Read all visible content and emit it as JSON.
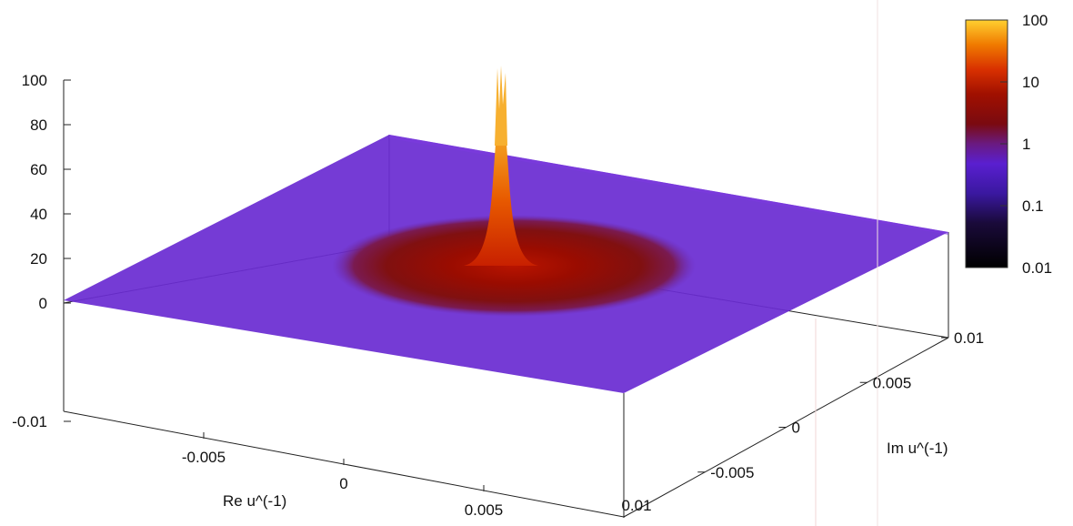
{
  "chart_data": {
    "type": "surface3d",
    "title": "",
    "xlabel": "Re u^(-1)",
    "ylabel": "Im u^(-1)",
    "zlabel": "",
    "x_range": [
      -0.01,
      0.01
    ],
    "y_range": [
      -0.01,
      0.01
    ],
    "z_range": [
      -0.01,
      100
    ],
    "x_ticks": [
      "-0.005",
      "0",
      "0.005",
      "0.01"
    ],
    "y_ticks": [
      "-0.005",
      "0",
      "0.005",
      "0.01"
    ],
    "z_ticks": [
      "100",
      "80",
      "60",
      "40",
      "20",
      "0",
      "-0.01"
    ],
    "y_corner_label": "0.01",
    "colorbar": {
      "scale": "log",
      "ticks": [
        "100",
        "10",
        "1",
        "0.1",
        "0.01"
      ],
      "range": [
        0.01,
        100
      ]
    },
    "peak": {
      "x": 0,
      "y": 0,
      "z_max": 100
    },
    "background_level": 0.1,
    "halo_radius": 0.005
  }
}
